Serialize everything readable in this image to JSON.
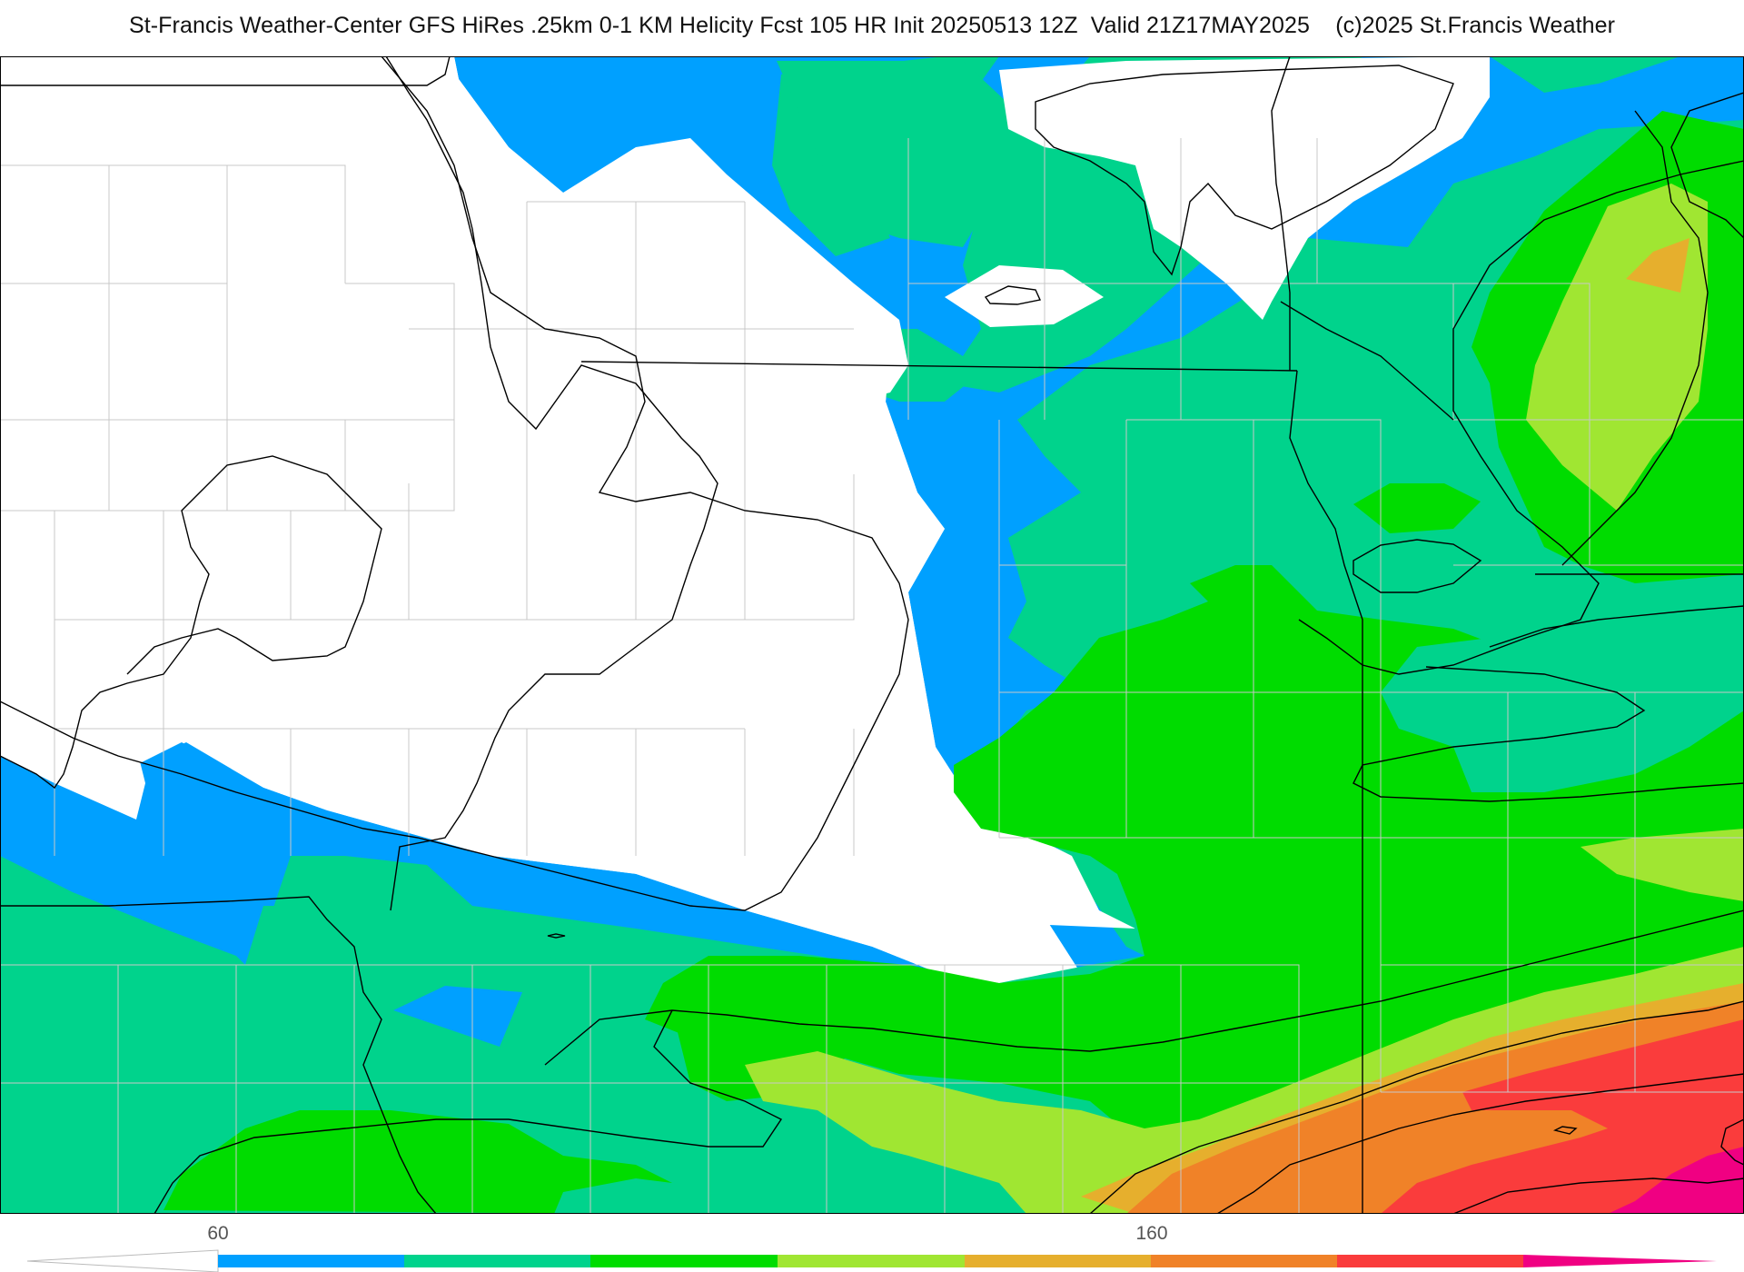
{
  "title": "St-Francis Weather-Center GFS HiRes .25km 0-1 KM Helicity Fcst 105 HR Init 20250513 12Z  Valid 21Z17MAY2025    (c)2025 St.Francis Weather",
  "colorbar": {
    "tick_labels": [
      "60",
      "160"
    ],
    "colors": [
      "#ffffff",
      "#00a0ff",
      "#00d38c",
      "#00dc00",
      "#a0e632",
      "#e6af2d",
      "#f08228",
      "#fa3c3c",
      "#f00082"
    ]
  },
  "map": {
    "field": "0-1 KM Helicity",
    "fill_colors": {
      "white": "#ffffff",
      "blue": "#00a0ff",
      "teal": "#00d38c",
      "green": "#00dc00",
      "lime": "#a0e632",
      "gold": "#e6af2d",
      "orange": "#f08228",
      "red": "#fa3c3c",
      "magenta": "#f00082"
    },
    "border_color": "#000000",
    "county_color": "#c8c8c8"
  }
}
